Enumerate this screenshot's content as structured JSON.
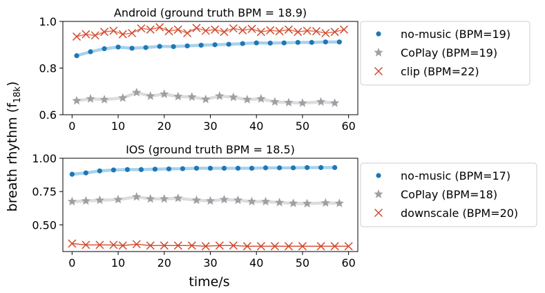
{
  "figure": {
    "ylabel": "breath rhythm (f",
    "ylabel_sub": "18k",
    "ylabel_close": ")",
    "xlabel": "time/s"
  },
  "chart_data": [
    {
      "type": "line",
      "title": "Android (ground truth BPM = 18.9)",
      "xlim": [
        -2,
        62
      ],
      "ylim": [
        0.6,
        1.0
      ],
      "xticks": [
        0,
        10,
        20,
        30,
        40,
        50,
        60
      ],
      "yticks": [
        0.6,
        0.8,
        1.0
      ],
      "ytick_labels": [
        "0.6",
        "0.8",
        "1.0"
      ],
      "legend_position": "right",
      "series": [
        {
          "name": "no-music (BPM=19)",
          "marker": "dot",
          "color": "#1f77b4",
          "line_color": "#a6d2ec",
          "x": [
            1,
            4,
            7,
            10,
            13,
            16,
            19,
            22,
            25,
            28,
            31,
            34,
            37,
            40,
            43,
            46,
            49,
            52,
            55,
            58
          ],
          "y": [
            0.853,
            0.87,
            0.883,
            0.89,
            0.885,
            0.888,
            0.893,
            0.892,
            0.895,
            0.898,
            0.9,
            0.902,
            0.905,
            0.908,
            0.907,
            0.908,
            0.91,
            0.91,
            0.912,
            0.912
          ]
        },
        {
          "name": "CoPlay (BPM=19)",
          "marker": "star",
          "color": "#9e9ea4",
          "line_color": "#dcdcdc",
          "x": [
            1,
            4,
            7,
            11,
            14,
            17,
            20,
            23,
            26,
            29,
            32,
            35,
            38,
            41,
            44,
            47,
            50,
            54,
            57
          ],
          "y": [
            0.66,
            0.668,
            0.665,
            0.672,
            0.695,
            0.68,
            0.688,
            0.678,
            0.676,
            0.666,
            0.68,
            0.675,
            0.665,
            0.668,
            0.655,
            0.652,
            0.65,
            0.655,
            0.65
          ]
        },
        {
          "name": "clip (BPM=22)",
          "marker": "x",
          "color": "#d04a2e",
          "line_color": "#e06a4e",
          "x": [
            1,
            3,
            5,
            7,
            9,
            11,
            13,
            15,
            17,
            19,
            21,
            23,
            25,
            27,
            29,
            31,
            33,
            35,
            37,
            39,
            41,
            43,
            45,
            47,
            49,
            51,
            53,
            55,
            57,
            59
          ],
          "y": [
            0.935,
            0.945,
            0.94,
            0.955,
            0.96,
            0.945,
            0.95,
            0.97,
            0.965,
            0.975,
            0.958,
            0.965,
            0.95,
            0.972,
            0.96,
            0.965,
            0.955,
            0.97,
            0.962,
            0.968,
            0.955,
            0.962,
            0.958,
            0.965,
            0.955,
            0.96,
            0.958,
            0.95,
            0.955,
            0.965
          ]
        }
      ]
    },
    {
      "type": "line",
      "title": "IOS (ground truth BPM = 18.5)",
      "xlim": [
        -2,
        62
      ],
      "ylim": [
        0.3,
        1.0
      ],
      "xticks": [
        0,
        10,
        20,
        30,
        40,
        50,
        60
      ],
      "yticks": [
        0.5,
        0.75,
        1.0
      ],
      "ytick_labels": [
        "0.50",
        "0.75",
        "1.00"
      ],
      "legend_position": "right",
      "series": [
        {
          "name": "no-music (BPM=17)",
          "marker": "dot",
          "color": "#1f77b4",
          "line_color": "#a6d2ec",
          "x": [
            0,
            3,
            6,
            9,
            12,
            15,
            18,
            21,
            24,
            27,
            30,
            33,
            36,
            39,
            42,
            45,
            48,
            51,
            54,
            57
          ],
          "y": [
            0.88,
            0.89,
            0.905,
            0.912,
            0.915,
            0.915,
            0.918,
            0.92,
            0.922,
            0.925,
            0.925,
            0.925,
            0.925,
            0.925,
            0.928,
            0.928,
            0.928,
            0.93,
            0.93,
            0.93
          ]
        },
        {
          "name": "CoPlay (BPM=18)",
          "marker": "star",
          "color": "#9e9ea4",
          "line_color": "#dcdcdc",
          "x": [
            0,
            3,
            6,
            10,
            14,
            17,
            20,
            23,
            27,
            30,
            33,
            36,
            39,
            42,
            45,
            48,
            51,
            55,
            58
          ],
          "y": [
            0.675,
            0.68,
            0.685,
            0.69,
            0.71,
            0.695,
            0.695,
            0.7,
            0.685,
            0.68,
            0.69,
            0.685,
            0.675,
            0.675,
            0.668,
            0.662,
            0.66,
            0.665,
            0.662
          ]
        },
        {
          "name": "downscale (BPM=20)",
          "marker": "x",
          "color": "#d04a2e",
          "line_color": "#d04a2e",
          "x": [
            0,
            3,
            6,
            9,
            11,
            14,
            17,
            20,
            23,
            26,
            29,
            32,
            35,
            38,
            41,
            44,
            47,
            50,
            54,
            57,
            60
          ],
          "y": [
            0.36,
            0.35,
            0.35,
            0.35,
            0.345,
            0.355,
            0.345,
            0.345,
            0.345,
            0.345,
            0.34,
            0.345,
            0.345,
            0.34,
            0.34,
            0.34,
            0.34,
            0.34,
            0.34,
            0.34,
            0.34
          ]
        }
      ]
    }
  ]
}
